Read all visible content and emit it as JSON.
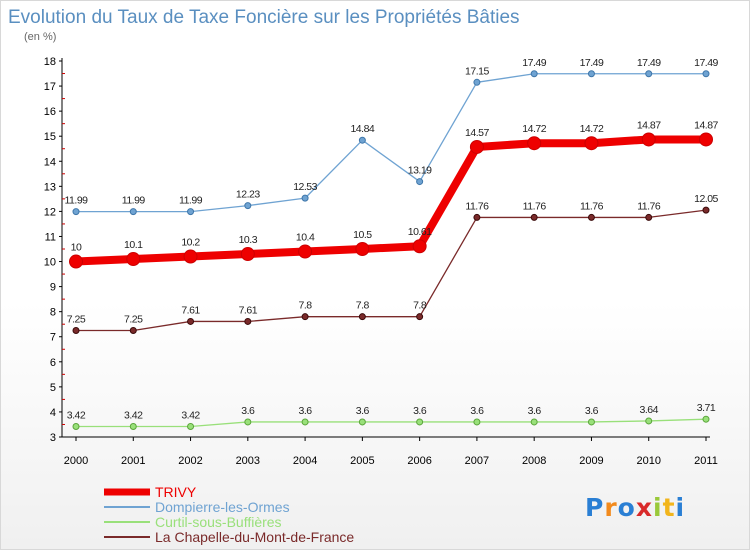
{
  "chart_data": {
    "type": "line",
    "title": "Evolution du Taux de Taxe Foncière sur les Propriétés Bâties",
    "subtitle": "(en %)",
    "x": [
      "2000",
      "2001",
      "2002",
      "2003",
      "2004",
      "2005",
      "2006",
      "2007",
      "2008",
      "2009",
      "2010",
      "2011"
    ],
    "ylim": [
      3,
      18
    ],
    "yticks": [
      "3",
      "4",
      "5",
      "6",
      "7",
      "8",
      "9",
      "10",
      "11",
      "12",
      "13",
      "14",
      "15",
      "16",
      "17",
      "18"
    ],
    "grid": false,
    "legend_position": "bottom-left",
    "series": [
      {
        "name": "TRIVY",
        "color": "#ee0000",
        "values": [
          10,
          10.1,
          10.2,
          10.3,
          10.4,
          10.5,
          10.61,
          14.57,
          14.72,
          14.72,
          14.87,
          14.87
        ],
        "labels": [
          "10",
          "10.1",
          "10.2",
          "10.3",
          "10.4",
          "10.5",
          "10.61",
          "14.57",
          "14.72",
          "14.72",
          "14.87",
          "14.87"
        ]
      },
      {
        "name": "Dompierre-les-Ormes",
        "color": "#6fa3d2",
        "values": [
          11.99,
          11.99,
          11.99,
          12.23,
          12.53,
          14.84,
          13.19,
          17.15,
          17.49,
          17.49,
          17.49,
          17.49
        ],
        "labels": [
          "11.99",
          "11.99",
          "11.99",
          "12.23",
          "12.53",
          "14.84",
          "13.19",
          "17.15",
          "17.49",
          "17.49",
          "17.49",
          "17.49"
        ]
      },
      {
        "name": "Curtil-sous-Buffières",
        "color": "#99e07a",
        "values": [
          3.42,
          3.42,
          3.42,
          3.6,
          3.6,
          3.6,
          3.6,
          3.6,
          3.6,
          3.6,
          3.64,
          3.71
        ],
        "labels": [
          "3.42",
          "3.42",
          "3.42",
          "3.6",
          "3.6",
          "3.6",
          "3.6",
          "3.6",
          "3.6",
          "3.6",
          "3.64",
          "3.71"
        ]
      },
      {
        "name": "La Chapelle-du-Mont-de-France",
        "color": "#7a2a2a",
        "values": [
          7.25,
          7.25,
          7.61,
          7.61,
          7.8,
          7.8,
          7.8,
          11.76,
          11.76,
          11.76,
          11.76,
          12.05
        ],
        "labels": [
          "7.25",
          "7.25",
          "7.61",
          "7.61",
          "7.8",
          "7.8",
          "7.8",
          "11.76",
          "11.76",
          "11.76",
          "11.76",
          "12.05"
        ]
      }
    ]
  },
  "logo": {
    "text": "Proxiti"
  },
  "colors": {
    "title": "#5a8fc0",
    "axis": "#000000",
    "tick_red": "#cc0000"
  }
}
